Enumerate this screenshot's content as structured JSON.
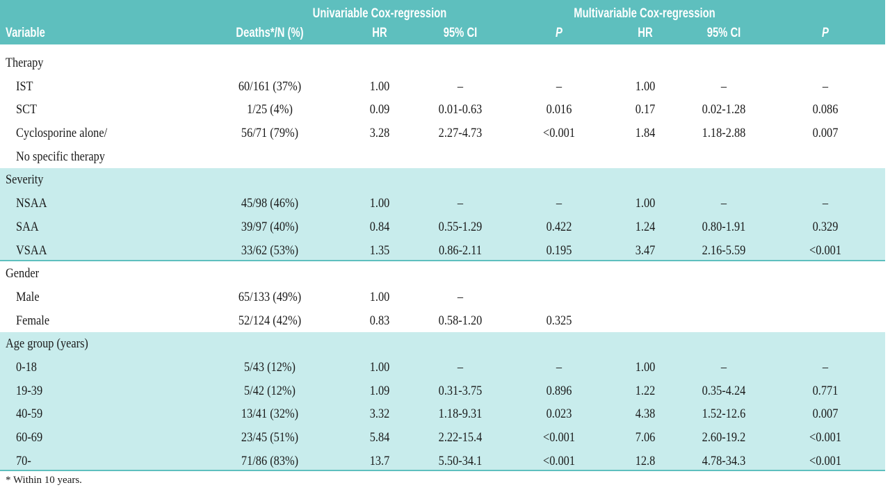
{
  "header": {
    "univariable": "Univariable Cox-regression",
    "multivariable": "Multivariable Cox-regression",
    "columns": [
      "Variable",
      "Deaths*/N (%)",
      "HR",
      "95% CI",
      "P",
      "HR",
      "95% CI",
      "P"
    ]
  },
  "rows": [
    {
      "type": "group",
      "label": "Therapy"
    },
    {
      "type": "item",
      "label": "IST",
      "deaths": "60/161 (37%)",
      "uhr": "1.00",
      "uci": "–",
      "up": "–",
      "mhr": "1.00",
      "mci": "–",
      "mp": "–"
    },
    {
      "type": "item",
      "label": "SCT",
      "deaths": "1/25 (4%)",
      "uhr": "0.09",
      "uci": "0.01-0.63",
      "up": "0.016",
      "mhr": "0.17",
      "mci": "0.02-1.28",
      "mp": "0.086"
    },
    {
      "type": "item",
      "label": "Cyclosporine alone/",
      "deaths": "56/71 (79%)",
      "uhr": "3.28",
      "uci": "2.27-4.73",
      "up": "<0.001",
      "mhr": "1.84",
      "mci": "1.18-2.88",
      "mp": "0.007"
    },
    {
      "type": "item",
      "label": "No specific therapy"
    },
    {
      "type": "group",
      "label": "Severity"
    },
    {
      "type": "item",
      "label": "NSAA",
      "deaths": "45/98 (46%)",
      "uhr": "1.00",
      "uci": "–",
      "up": "–",
      "mhr": "1.00",
      "mci": "–",
      "mp": "–"
    },
    {
      "type": "item",
      "label": "SAA",
      "deaths": "39/97 (40%)",
      "uhr": "0.84",
      "uci": "0.55-1.29",
      "up": "0.422",
      "mhr": "1.24",
      "mci": "0.80-1.91",
      "mp": "0.329"
    },
    {
      "type": "item",
      "label": "VSAA",
      "deaths": "33/62 (53%)",
      "uhr": "1.35",
      "uci": "0.86-2.11",
      "up": "0.195",
      "mhr": "3.47",
      "mci": "2.16-5.59",
      "mp": "<0.001"
    },
    {
      "type": "group",
      "label": "Gender"
    },
    {
      "type": "item",
      "label": "Male",
      "deaths": "65/133 (49%)",
      "uhr": "1.00",
      "uci": "–"
    },
    {
      "type": "item",
      "label": "Female",
      "deaths": "52/124 (42%)",
      "uhr": "0.83",
      "uci": "0.58-1.20",
      "up": "0.325"
    },
    {
      "type": "group",
      "label": "Age group (years)"
    },
    {
      "type": "item",
      "label": "0-18",
      "deaths": "5/43 (12%)",
      "uhr": "1.00",
      "uci": "–",
      "up": "–",
      "mhr": "1.00",
      "mci": "–",
      "mp": "–"
    },
    {
      "type": "item",
      "label": "19-39",
      "deaths": "5/42 (12%)",
      "uhr": "1.09",
      "uci": "0.31-3.75",
      "up": "0.896",
      "mhr": "1.22",
      "mci": "0.35-4.24",
      "mp": "0.771"
    },
    {
      "type": "item",
      "label": "40-59",
      "deaths": "13/41 (32%)",
      "uhr": "3.32",
      "uci": "1.18-9.31",
      "up": "0.023",
      "mhr": "4.38",
      "mci": "1.52-12.6",
      "mp": "0.007"
    },
    {
      "type": "item",
      "label": "60-69",
      "deaths": "23/45 (51%)",
      "uhr": "5.84",
      "uci": "2.22-15.4",
      "up": "<0.001",
      "mhr": "7.06",
      "mci": "2.60-19.2",
      "mp": "<0.001"
    },
    {
      "type": "item",
      "label": "70-",
      "deaths": "71/86 (83%)",
      "uhr": "13.7",
      "uci": "5.50-34.1",
      "up": "<0.001",
      "mhr": "12.8",
      "mci": "4.78-34.3",
      "mp": "<0.001"
    }
  ],
  "footnote": "* Within 10 years."
}
